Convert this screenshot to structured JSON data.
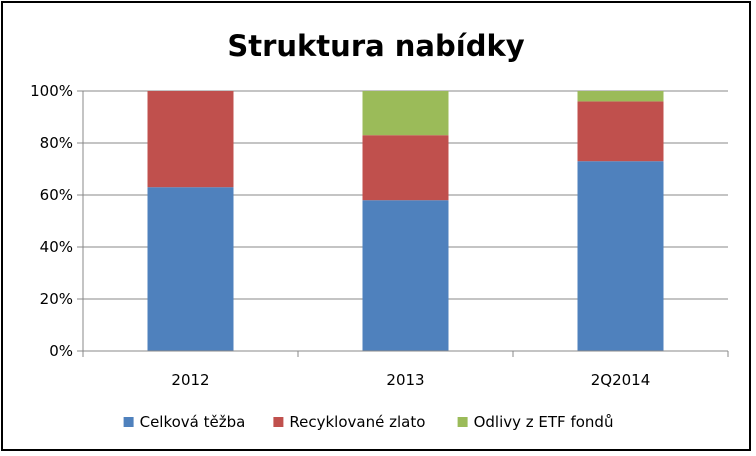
{
  "chart_data": {
    "type": "bar",
    "stacked": true,
    "percent": true,
    "title": "Struktura nabídky",
    "xlabel": "",
    "ylabel": "",
    "categories": [
      "2012",
      "2013",
      "2Q2014"
    ],
    "series": [
      {
        "name": "Celková těžba",
        "color": "#4F81BD",
        "values": [
          63,
          58,
          73
        ]
      },
      {
        "name": "Recyklované zlato",
        "color": "#C0504D",
        "values": [
          37,
          25,
          23
        ]
      },
      {
        "name": "Odlivy z ETF fondů",
        "color": "#9BBB59",
        "values": [
          0,
          17,
          4
        ]
      }
    ],
    "ylim": [
      0,
      100
    ],
    "yticks": [
      "0%",
      "20%",
      "40%",
      "60%",
      "80%",
      "100%"
    ],
    "grid": true,
    "legend": "bottom"
  }
}
